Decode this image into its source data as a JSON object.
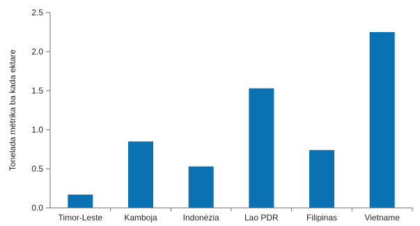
{
  "chart_data": {
    "type": "bar",
    "categories": [
      "Timor-Leste",
      "Kamboja",
      "Indonézia",
      "Lao PDR",
      "Filipinas",
      "Vietname"
    ],
    "values": [
      0.17,
      0.85,
      0.53,
      1.53,
      0.74,
      2.25
    ],
    "ylabel": "Tonelada métrika ba kada ektare",
    "ylim": [
      0,
      2.5
    ],
    "yticks": [
      "0.0",
      "0.5",
      "1.0",
      "1.5",
      "2.0",
      "2.5"
    ],
    "grid": false,
    "legend": "none",
    "bar_color": "#0a71b3",
    "axis_color": "#6d6e71"
  }
}
